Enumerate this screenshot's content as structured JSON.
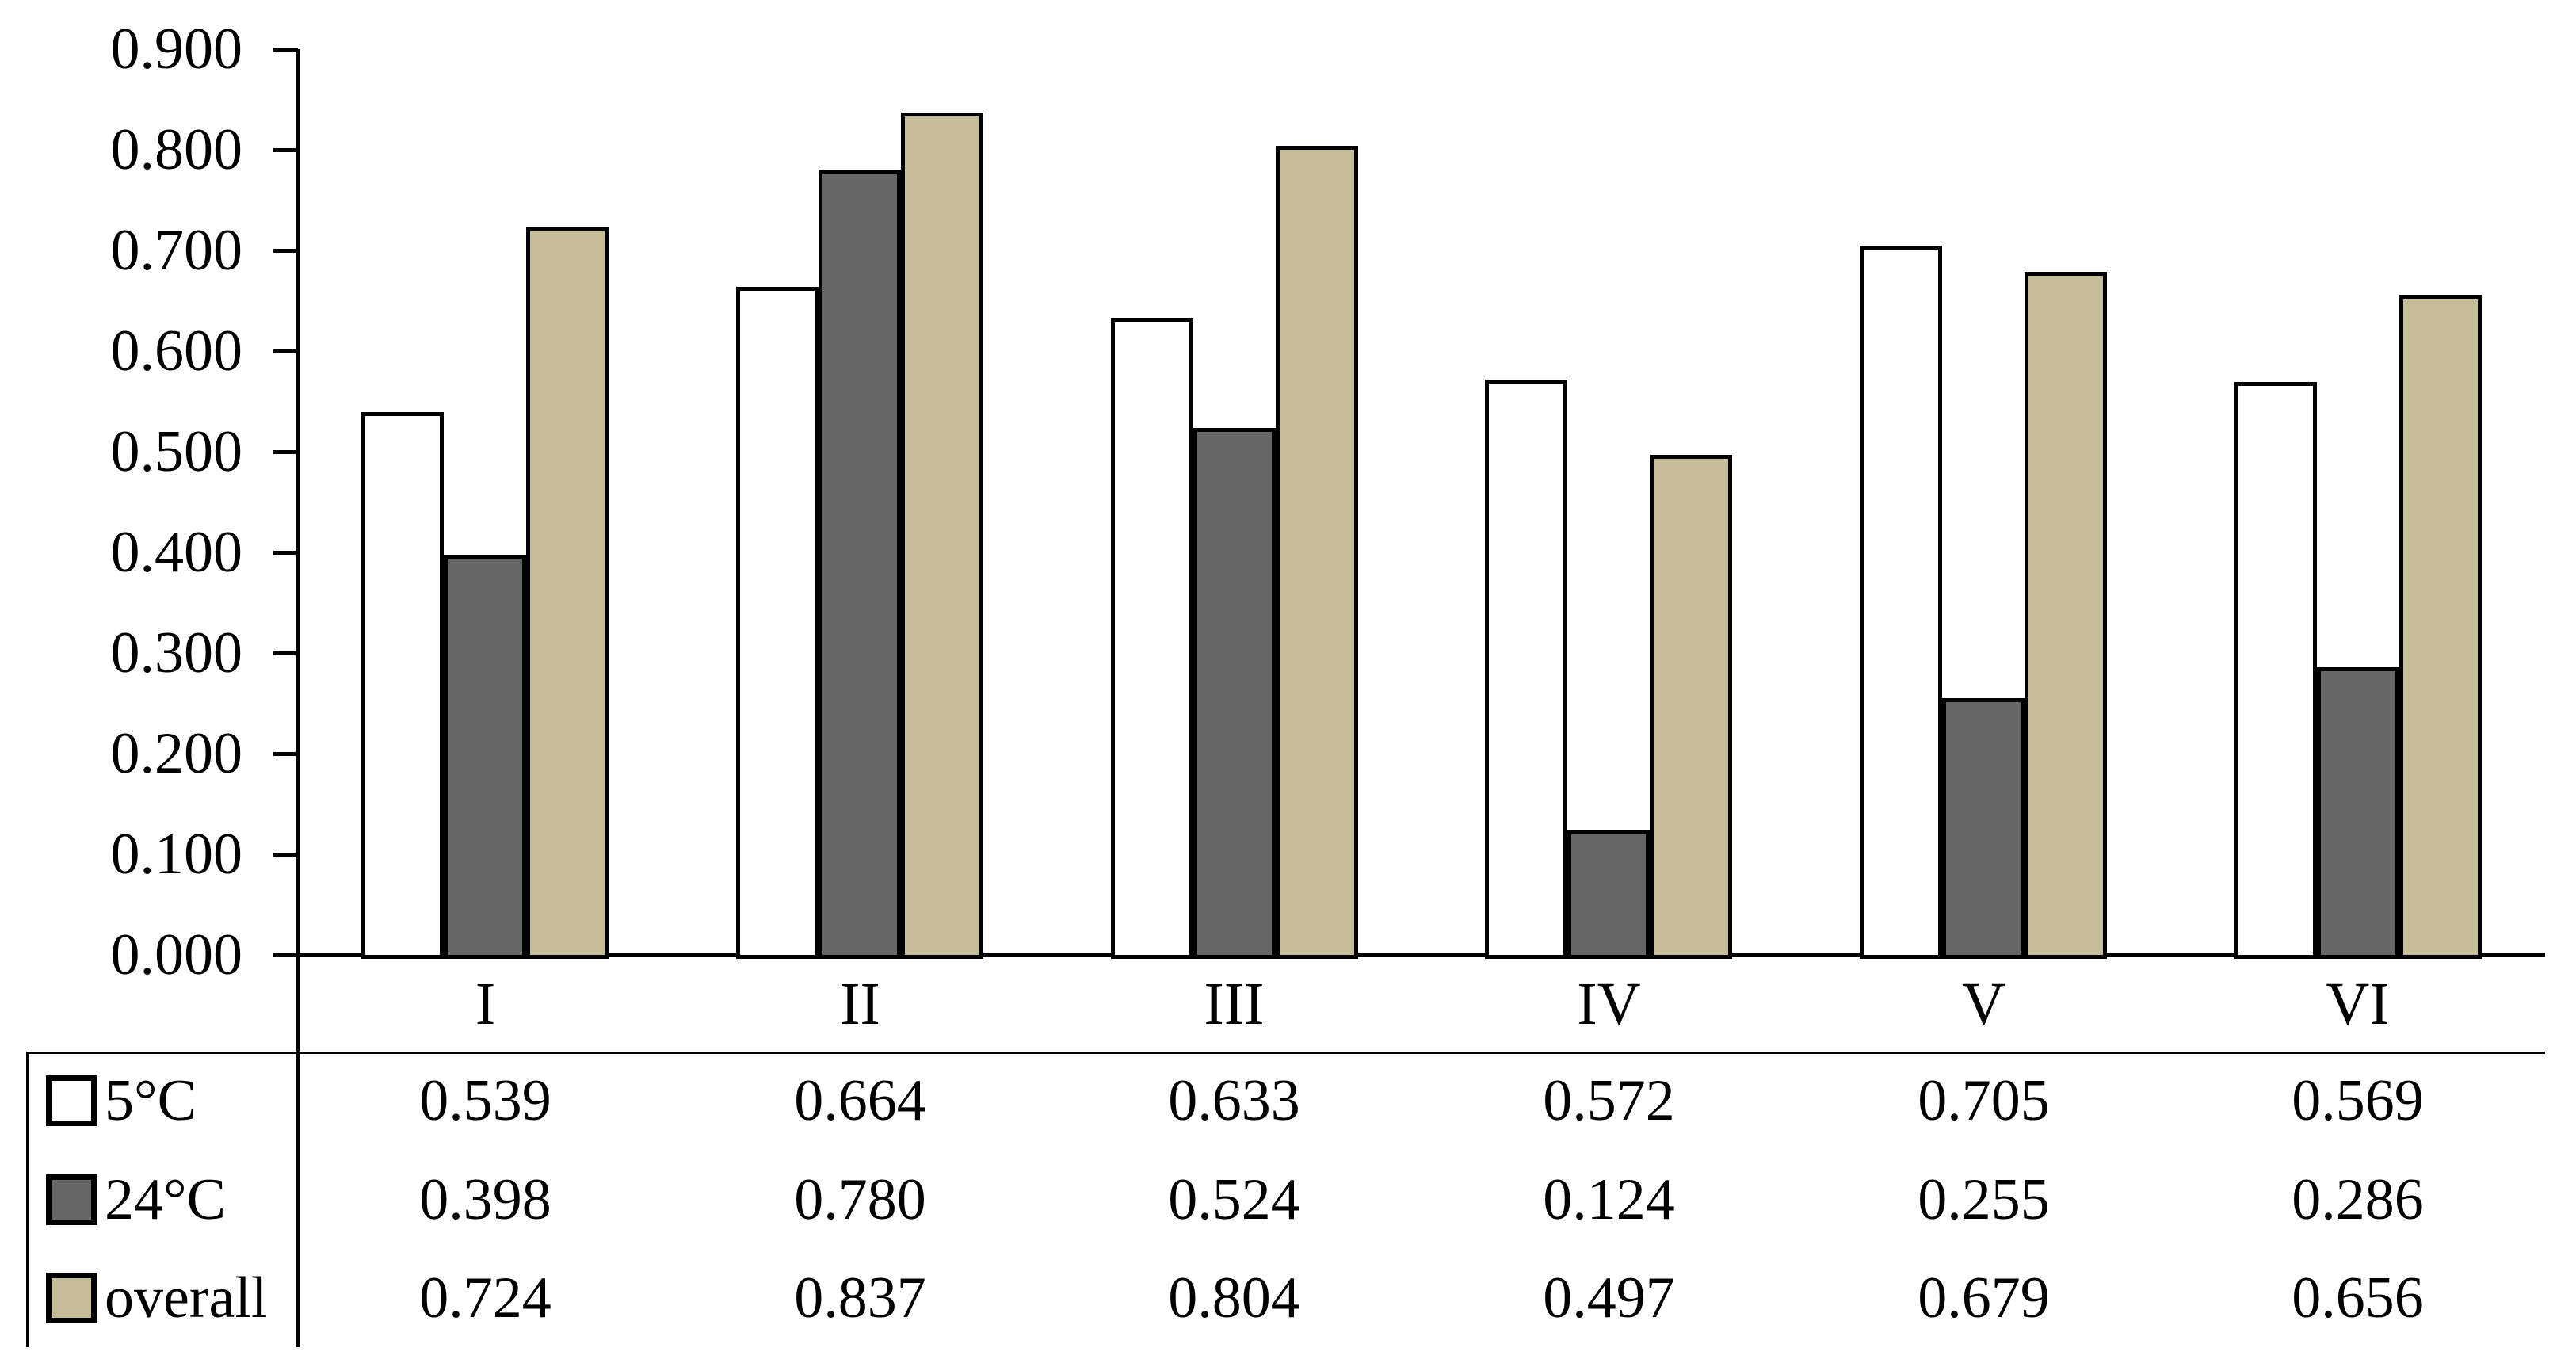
{
  "chart_data": {
    "type": "bar",
    "title": "",
    "xlabel": "",
    "ylabel": "",
    "categories": [
      "I",
      "II",
      "III",
      "IV",
      "V",
      "VI"
    ],
    "series": [
      {
        "key": "5c",
        "name": "5°C",
        "color": "#FFFFFF",
        "values": [
          0.539,
          0.664,
          0.633,
          0.572,
          0.705,
          0.569
        ]
      },
      {
        "key": "24c",
        "name": "24°C",
        "color": "#666666",
        "values": [
          0.398,
          0.78,
          0.524,
          0.124,
          0.255,
          0.286
        ]
      },
      {
        "key": "overall",
        "name": "overall",
        "color": "#C4BD97",
        "values": [
          0.724,
          0.837,
          0.804,
          0.497,
          0.679,
          0.656
        ]
      }
    ],
    "ylim": [
      0.0,
      0.9
    ],
    "ytick_step": 0.1,
    "yticks": [
      "0.900",
      "0.800",
      "0.700",
      "0.600",
      "0.500",
      "0.400",
      "0.300",
      "0.200",
      "0.100",
      "0.000"
    ],
    "value_format_decimals": 3,
    "grid": false,
    "legend_position": "table-left-column",
    "bar_edge_color": "#000000",
    "axis_color": "#000000",
    "text_color": "#000000",
    "background_color": "#FFFFFF",
    "data_table_shown": true
  }
}
